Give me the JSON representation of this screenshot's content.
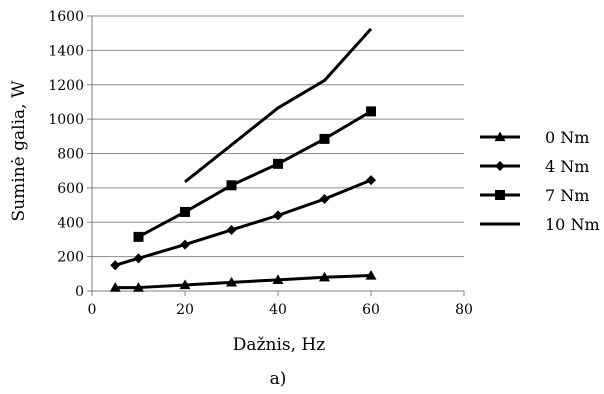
{
  "chart_data": {
    "type": "line",
    "xlabel": "Dažnis, Hz",
    "ylabel": "Suminė galia, W",
    "caption": "a)",
    "xlim": [
      0,
      80
    ],
    "ylim": [
      0,
      1600
    ],
    "xticks": [
      0,
      20,
      40,
      60,
      80
    ],
    "yticks": [
      0,
      200,
      400,
      600,
      800,
      1000,
      1200,
      1400,
      1600
    ],
    "grid": "horizontal",
    "legend_position": "right",
    "series": [
      {
        "name": "0 Nm",
        "marker": "triangle",
        "x": [
          5,
          10,
          20,
          30,
          40,
          50,
          60
        ],
        "y": [
          20,
          20,
          35,
          50,
          65,
          80,
          90
        ]
      },
      {
        "name": "4 Nm",
        "marker": "diamond",
        "x": [
          5,
          10,
          20,
          30,
          40,
          50,
          60
        ],
        "y": [
          150,
          190,
          270,
          355,
          440,
          535,
          645
        ]
      },
      {
        "name": "7 Nm",
        "marker": "square",
        "x": [
          10,
          20,
          30,
          40,
          50,
          60
        ],
        "y": [
          315,
          460,
          615,
          740,
          885,
          1045
        ]
      },
      {
        "name": "10 Nm",
        "marker": "none",
        "x": [
          20,
          30,
          40,
          50,
          60
        ],
        "y": [
          635,
          850,
          1065,
          1225,
          1525
        ]
      }
    ]
  }
}
